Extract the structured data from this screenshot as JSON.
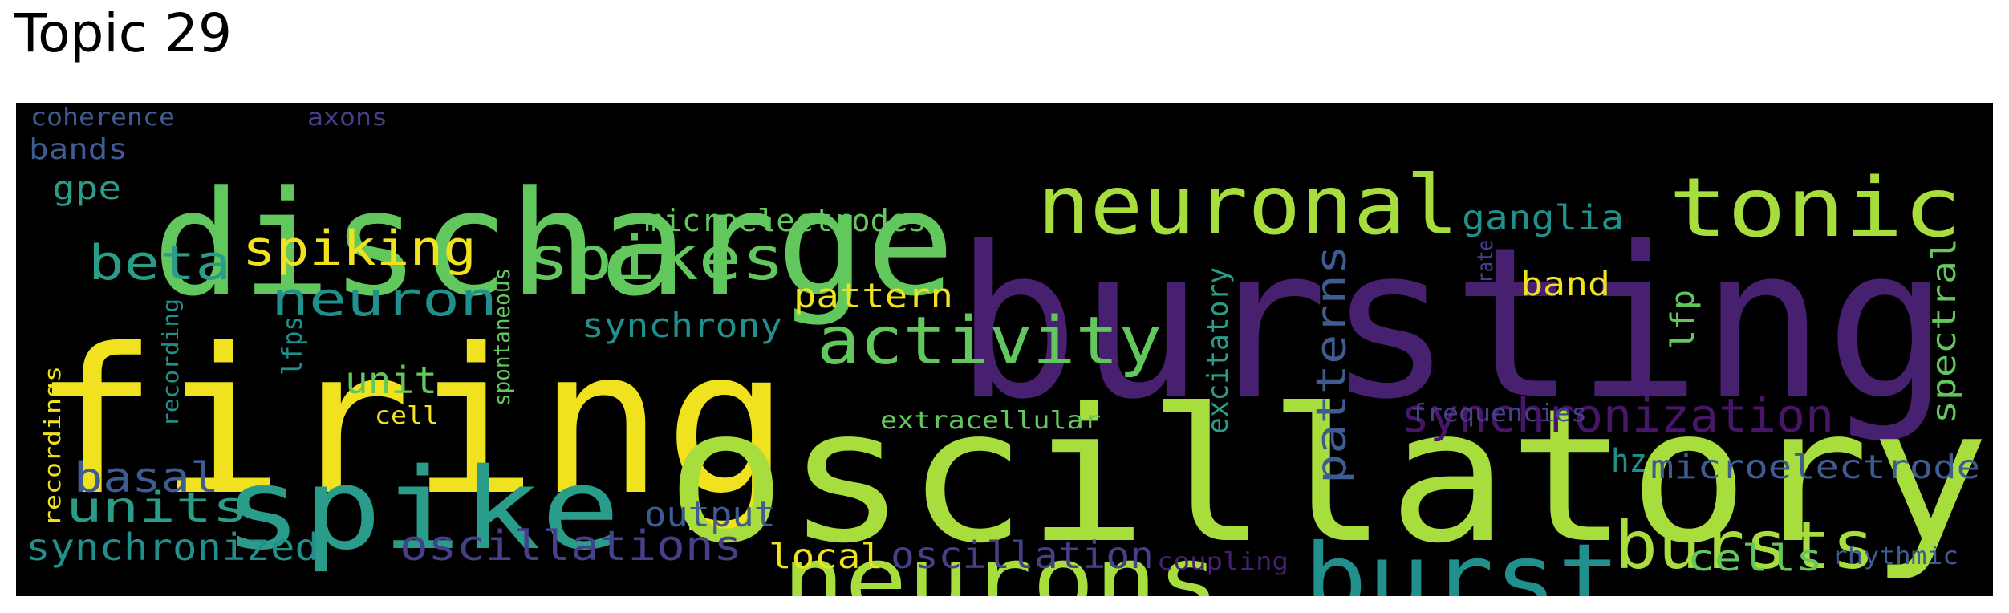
{
  "title": "Topic 29",
  "colors": {
    "background": "#000000",
    "yellow": "#f0e21f",
    "lime": "#a8dd3e",
    "green": "#62c85e",
    "teal": "#21908c",
    "cyan_teal": "#2a9d8a",
    "blue": "#3e5c91",
    "indigo": "#46408a",
    "purple": "#472070",
    "dark_purple": "#481668"
  },
  "words": [
    "bursting",
    "firing",
    "oscillatory",
    "discharge",
    "spike",
    "neurons",
    "burst",
    "neuronal",
    "tonic",
    "bursts",
    "activity",
    "spikes",
    "spiking",
    "beta",
    "synchronization",
    "neuron",
    "patterns",
    "oscillations",
    "oscillation",
    "units",
    "basal",
    "synchronized",
    "microelectrodes",
    "ganglia",
    "band",
    "pattern",
    "synchrony",
    "microelectrode",
    "spectral",
    "lfp",
    "excitatory",
    "unit",
    "output",
    "local",
    "cells",
    "hz",
    "extracellular",
    "frequencies",
    "coupling",
    "rhythmic",
    "lfps",
    "spontaneous",
    "recording",
    "recordings",
    "cell",
    "coherence",
    "axons",
    "bands",
    "gpe",
    "rate"
  ]
}
